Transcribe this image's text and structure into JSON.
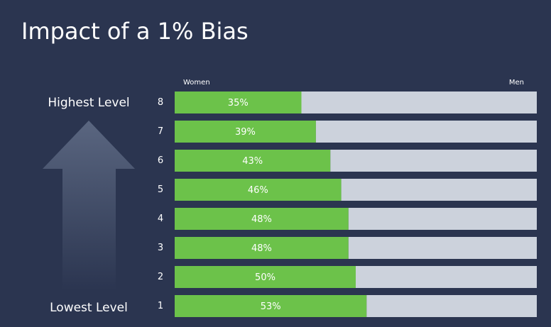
{
  "chart_data": {
    "type": "stacked_bar_horizontal",
    "title": "Impact of a 1% Bias",
    "categories": [
      "8",
      "7",
      "6",
      "5",
      "4",
      "3",
      "2",
      "1"
    ],
    "series": [
      {
        "name": "Women",
        "color": "#6cc24a",
        "values": [
          35,
          39,
          43,
          46,
          48,
          48,
          50,
          53
        ],
        "value_labels": [
          "35%",
          "39%",
          "43%",
          "46%",
          "48%",
          "48%",
          "50%",
          "53%"
        ]
      },
      {
        "name": "Men",
        "color": "#ccd2dc",
        "values": [
          65,
          61,
          57,
          54,
          52,
          52,
          50,
          47
        ]
      }
    ],
    "xlim": [
      0,
      100
    ],
    "annotations": [
      "Highest Level",
      "Lowest Level"
    ]
  }
}
